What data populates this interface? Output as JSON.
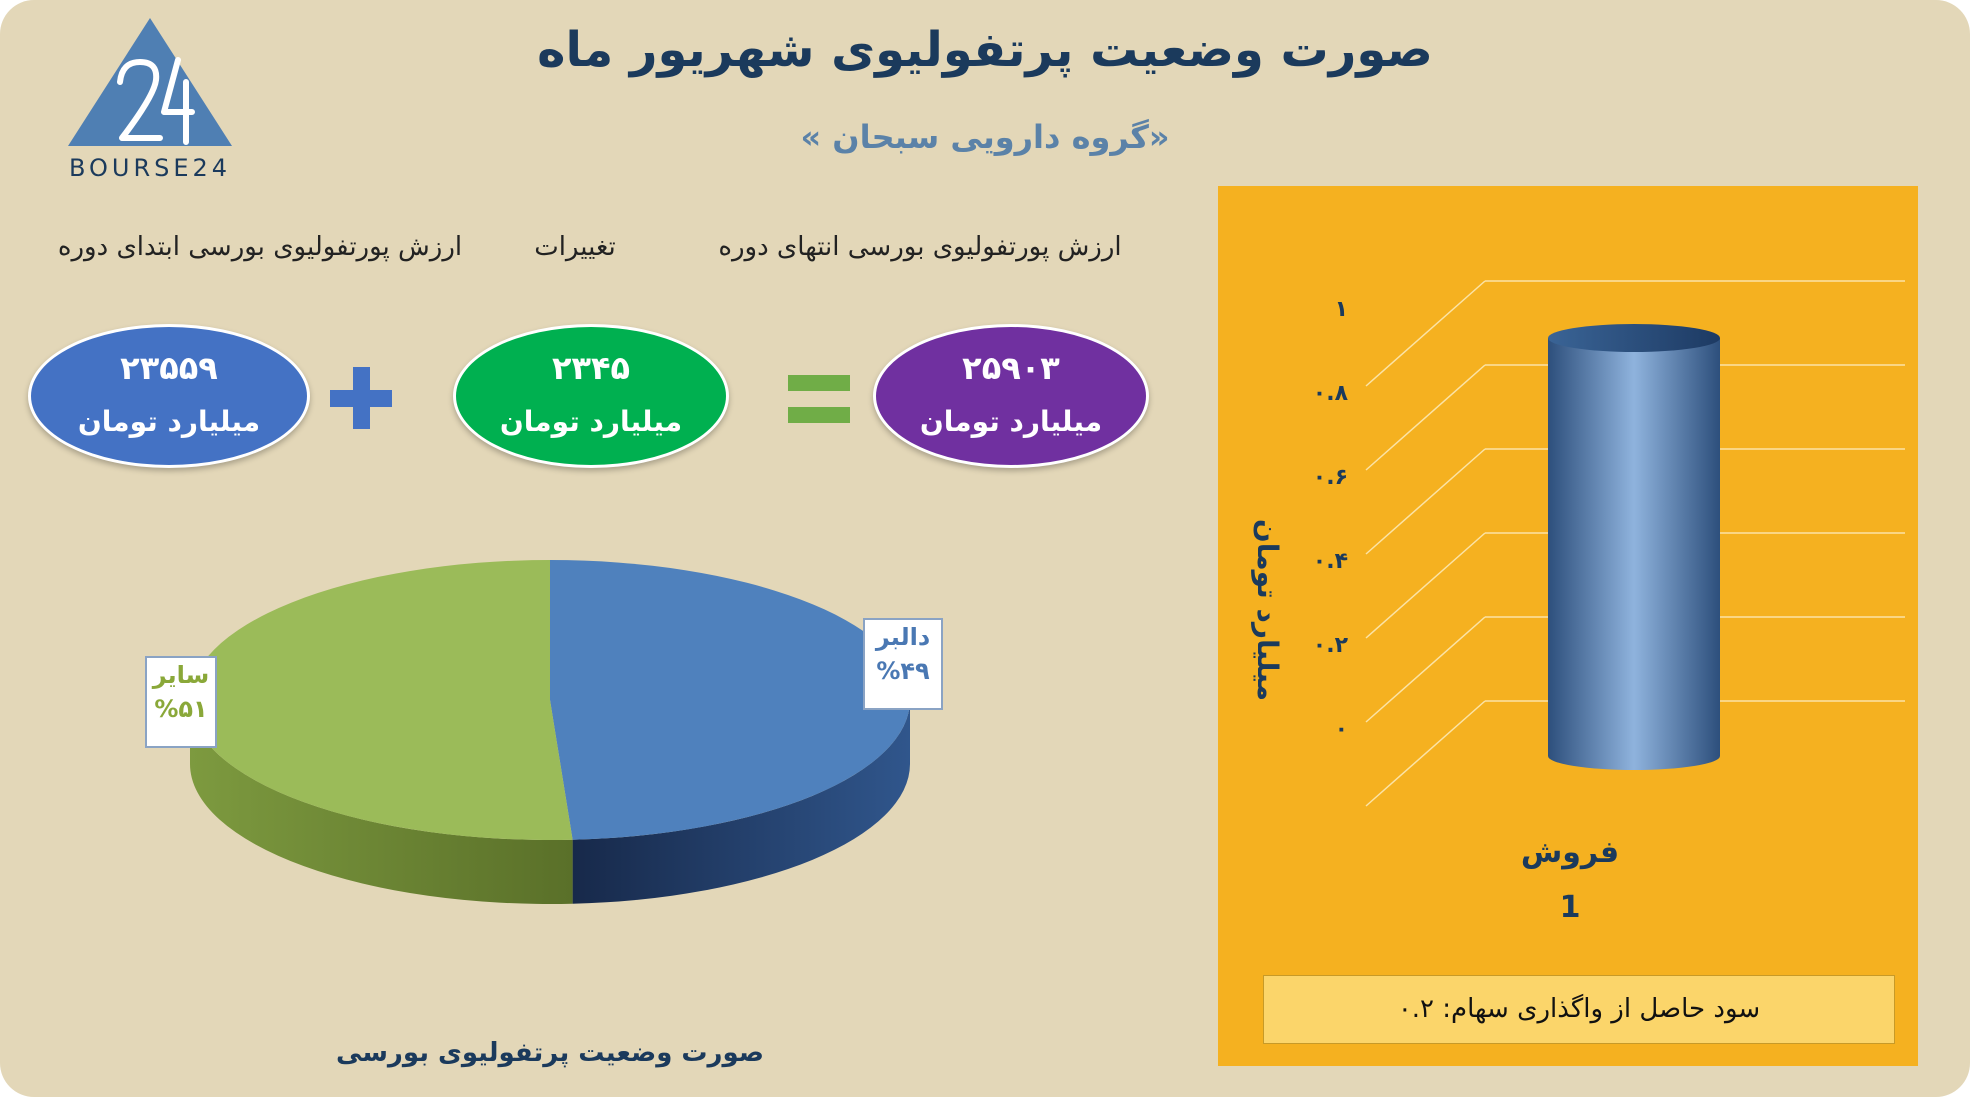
{
  "header": {
    "title": "صورت وضعیت پرتفولیوی شهریور ماه",
    "subtitle": "«گروه دارویی سبحان »",
    "logo_text": "BOURSE24"
  },
  "summary": {
    "start_label": "ارزش پورتفولیوی بورسی ابتدای دوره",
    "change_label": "تغییرات",
    "end_label": "ارزش پورتفولیوی بورسی انتهای دوره",
    "start_value": "۲۳۵۵۹",
    "change_value": "۲۳۴۵",
    "end_value": "۲۵۹۰۳",
    "unit": "میلیارد تومان",
    "colors": {
      "start": "#4472c4",
      "change": "#00b050",
      "end": "#7030a0"
    }
  },
  "chart_data": [
    {
      "type": "pie",
      "title": "صورت وضعیت پرتفولیوی بورسی",
      "slices": [
        {
          "label": "دالبر",
          "value": 49,
          "display": "%۴۹",
          "color": "#4f81bd"
        },
        {
          "label": "سایر",
          "value": 51,
          "display": "%۵۱",
          "color": "#9bbb59"
        }
      ]
    },
    {
      "type": "bar",
      "ylabel": "میلیارد تومان",
      "categories": [
        "فروش"
      ],
      "category_sub": "1",
      "values": [
        1
      ],
      "ylim": [
        0,
        1
      ],
      "yticks": [
        "۰",
        "۰.۲",
        "۰.۴",
        "۰.۶",
        "۰.۸",
        "۱"
      ],
      "color": "#4f81bd",
      "grid": true
    }
  ],
  "profit_note": "سود حاصل از واگذاری سهام: ۰.۲"
}
